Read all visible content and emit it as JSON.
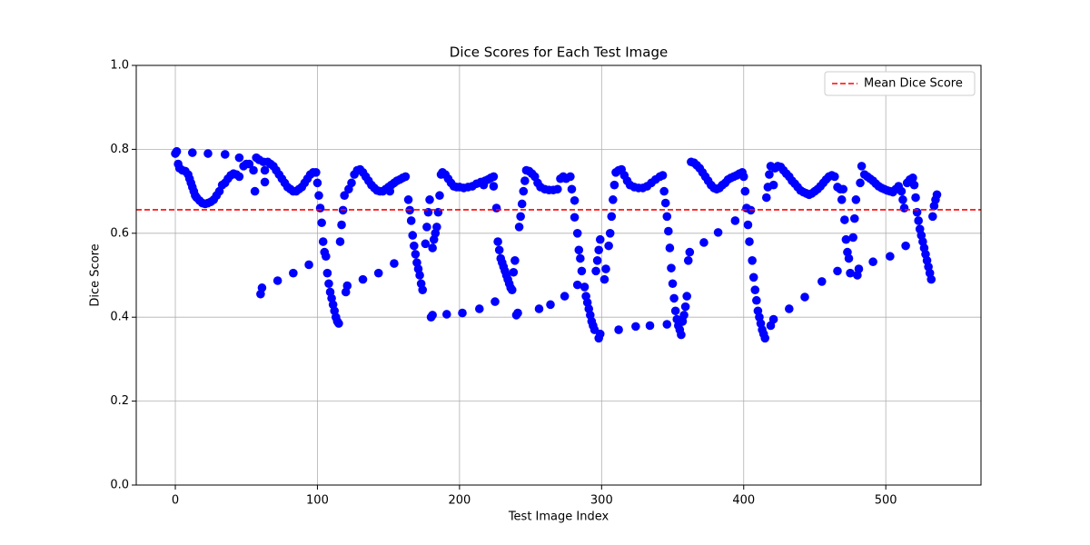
{
  "chart_data": {
    "type": "scatter",
    "title": "Dice Scores for Each Test Image",
    "x_label": "Test Image Index",
    "y_label": "Dice Score",
    "xlim": [
      -27.5,
      567
    ],
    "ylim": [
      0,
      1
    ],
    "xticks": [
      0,
      100,
      200,
      300,
      400,
      500
    ],
    "yticks": [
      {
        "value": 0,
        "label": "0.0"
      },
      0.2,
      0.4,
      0.6,
      0.8,
      {
        "value": 1,
        "label": "1.0"
      }
    ],
    "grid": true,
    "color": "#0000ff",
    "x": [
      0,
      1,
      2,
      3,
      5,
      7,
      9,
      10,
      11,
      12,
      13,
      14,
      15,
      17,
      19,
      21,
      23,
      25,
      27,
      29,
      31,
      33,
      35,
      37,
      39,
      41,
      43,
      45,
      12,
      23,
      35,
      45,
      48,
      50,
      52,
      55,
      57,
      59,
      62,
      65,
      67,
      69,
      71,
      73,
      75,
      77,
      79,
      81,
      83,
      85,
      87,
      89,
      91,
      93,
      95,
      97,
      99,
      56,
      63,
      63,
      60,
      61,
      72,
      83,
      94,
      100,
      101,
      102,
      103,
      104,
      105,
      106,
      107,
      108,
      109,
      110,
      111,
      112,
      113,
      114,
      115,
      116,
      117,
      118,
      120,
      121,
      119,
      122,
      124,
      126,
      128,
      130,
      132,
      134,
      136,
      138,
      140,
      142,
      144,
      146,
      148,
      150,
      152,
      154,
      156,
      158,
      160,
      162,
      132,
      143,
      154,
      151,
      164,
      165,
      166,
      167,
      168,
      169,
      170,
      171,
      172,
      173,
      174,
      176,
      177,
      178,
      179,
      181,
      182,
      183,
      184,
      185,
      186,
      180,
      181,
      191,
      187,
      188,
      190,
      192,
      194,
      196,
      198,
      200,
      203,
      206,
      209,
      212,
      215,
      218,
      220,
      222,
      224,
      224,
      217,
      202,
      214,
      225,
      226,
      227,
      228,
      229,
      230,
      231,
      232,
      233,
      234,
      235,
      236,
      237,
      238,
      239,
      240,
      241,
      242,
      243,
      244,
      245,
      246,
      247,
      249,
      251,
      253,
      255,
      257,
      260,
      263,
      266,
      269,
      271,
      273,
      275,
      278,
      279,
      281,
      281,
      283,
      284,
      285,
      286,
      283,
      288,
      289,
      290,
      291,
      292,
      293,
      294,
      295,
      298,
      299,
      296,
      297,
      298,
      299,
      302,
      303,
      305,
      306,
      307,
      308,
      309,
      310,
      312,
      314,
      316,
      318,
      320,
      323,
      326,
      329,
      332,
      335,
      338,
      341,
      343,
      256,
      264,
      274,
      312,
      324,
      334,
      346,
      344,
      345,
      346,
      347,
      348,
      349,
      350,
      351,
      352,
      353,
      354,
      355,
      356,
      357,
      358,
      359,
      360,
      361,
      362,
      363,
      365,
      367,
      369,
      371,
      373,
      375,
      377,
      379,
      381,
      383,
      385,
      387,
      389,
      391,
      393,
      395,
      397,
      399,
      400,
      401,
      402,
      403,
      404,
      405,
      406,
      407,
      408,
      409,
      410,
      411,
      412,
      413,
      414,
      415,
      372,
      382,
      394,
      419,
      421,
      432,
      443,
      455,
      466,
      416,
      417,
      418,
      419,
      421,
      422,
      424,
      426,
      428,
      430,
      432,
      434,
      436,
      438,
      440,
      442,
      444,
      446,
      448,
      450,
      452,
      454,
      456,
      458,
      460,
      462,
      464,
      466,
      468,
      470,
      469,
      471,
      472,
      473,
      474,
      475,
      477,
      478,
      479,
      480,
      481,
      482,
      483,
      485,
      487,
      489,
      491,
      493,
      495,
      497,
      499,
      501,
      503,
      505,
      507,
      509,
      511,
      512,
      513,
      515,
      517,
      519,
      520,
      521,
      522,
      523,
      524,
      525,
      526,
      527,
      528,
      529,
      530,
      531,
      532,
      533,
      534,
      535,
      536,
      491,
      503,
      514
    ],
    "values": [
      0.79,
      0.795,
      0.765,
      0.755,
      0.75,
      0.748,
      0.74,
      0.73,
      0.72,
      0.71,
      0.7,
      0.69,
      0.685,
      0.678,
      0.672,
      0.67,
      0.672,
      0.675,
      0.68,
      0.69,
      0.7,
      0.715,
      0.72,
      0.73,
      0.738,
      0.742,
      0.74,
      0.735,
      0.792,
      0.79,
      0.788,
      0.78,
      0.76,
      0.765,
      0.765,
      0.75,
      0.78,
      0.775,
      0.77,
      0.77,
      0.765,
      0.76,
      0.75,
      0.74,
      0.73,
      0.72,
      0.71,
      0.705,
      0.7,
      0.7,
      0.705,
      0.71,
      0.72,
      0.73,
      0.74,
      0.745,
      0.745,
      0.7,
      0.722,
      0.75,
      0.455,
      0.47,
      0.487,
      0.505,
      0.525,
      0.72,
      0.69,
      0.66,
      0.625,
      0.58,
      0.555,
      0.545,
      0.505,
      0.48,
      0.46,
      0.445,
      0.43,
      0.415,
      0.4,
      0.39,
      0.385,
      0.58,
      0.62,
      0.655,
      0.46,
      0.475,
      0.69,
      0.705,
      0.72,
      0.74,
      0.75,
      0.752,
      0.745,
      0.735,
      0.725,
      0.715,
      0.708,
      0.702,
      0.7,
      0.7,
      0.705,
      0.71,
      0.715,
      0.72,
      0.725,
      0.728,
      0.732,
      0.735,
      0.49,
      0.505,
      0.528,
      0.7,
      0.68,
      0.655,
      0.63,
      0.595,
      0.57,
      0.55,
      0.53,
      0.515,
      0.5,
      0.48,
      0.465,
      0.575,
      0.615,
      0.65,
      0.68,
      0.565,
      0.585,
      0.6,
      0.615,
      0.65,
      0.69,
      0.4,
      0.405,
      0.407,
      0.74,
      0.745,
      0.74,
      0.73,
      0.72,
      0.712,
      0.71,
      0.71,
      0.708,
      0.71,
      0.712,
      0.718,
      0.722,
      0.725,
      0.728,
      0.732,
      0.735,
      0.712,
      0.715,
      0.41,
      0.42,
      0.437,
      0.66,
      0.58,
      0.56,
      0.54,
      0.53,
      0.52,
      0.51,
      0.5,
      0.49,
      0.48,
      0.47,
      0.465,
      0.507,
      0.535,
      0.405,
      0.41,
      0.615,
      0.64,
      0.67,
      0.7,
      0.725,
      0.75,
      0.748,
      0.742,
      0.735,
      0.72,
      0.71,
      0.705,
      0.703,
      0.703,
      0.705,
      0.73,
      0.735,
      0.73,
      0.735,
      0.705,
      0.678,
      0.638,
      0.6,
      0.56,
      0.54,
      0.51,
      0.477,
      0.472,
      0.45,
      0.435,
      0.42,
      0.405,
      0.39,
      0.38,
      0.37,
      0.35,
      0.36,
      0.51,
      0.535,
      0.56,
      0.585,
      0.49,
      0.515,
      0.57,
      0.6,
      0.64,
      0.68,
      0.715,
      0.745,
      0.75,
      0.752,
      0.738,
      0.725,
      0.715,
      0.71,
      0.708,
      0.708,
      0.712,
      0.72,
      0.728,
      0.735,
      0.738,
      0.42,
      0.43,
      0.45,
      0.37,
      0.378,
      0.38,
      0.383,
      0.7,
      0.672,
      0.64,
      0.605,
      0.565,
      0.517,
      0.48,
      0.445,
      0.415,
      0.395,
      0.38,
      0.37,
      0.358,
      0.39,
      0.405,
      0.425,
      0.45,
      0.535,
      0.555,
      0.77,
      0.768,
      0.762,
      0.755,
      0.745,
      0.735,
      0.725,
      0.715,
      0.708,
      0.705,
      0.708,
      0.715,
      0.72,
      0.728,
      0.732,
      0.735,
      0.738,
      0.742,
      0.745,
      0.735,
      0.7,
      0.66,
      0.62,
      0.58,
      0.655,
      0.535,
      0.495,
      0.465,
      0.44,
      0.415,
      0.4,
      0.385,
      0.37,
      0.36,
      0.35,
      0.578,
      0.602,
      0.63,
      0.38,
      0.395,
      0.42,
      0.448,
      0.485,
      0.51,
      0.685,
      0.71,
      0.74,
      0.76,
      0.715,
      0.755,
      0.76,
      0.758,
      0.75,
      0.742,
      0.735,
      0.725,
      0.718,
      0.71,
      0.702,
      0.698,
      0.695,
      0.692,
      0.695,
      0.7,
      0.705,
      0.712,
      0.72,
      0.728,
      0.735,
      0.738,
      0.735,
      0.71,
      0.705,
      0.705,
      0.68,
      0.632,
      0.585,
      0.555,
      0.54,
      0.505,
      0.59,
      0.635,
      0.68,
      0.5,
      0.515,
      0.72,
      0.76,
      0.74,
      0.735,
      0.73,
      0.725,
      0.718,
      0.712,
      0.708,
      0.705,
      0.702,
      0.7,
      0.698,
      0.705,
      0.712,
      0.7,
      0.68,
      0.66,
      0.72,
      0.728,
      0.732,
      0.715,
      0.685,
      0.65,
      0.63,
      0.61,
      0.595,
      0.58,
      0.565,
      0.55,
      0.535,
      0.52,
      0.505,
      0.49,
      0.64,
      0.665,
      0.68,
      0.692,
      0.532,
      0.545,
      0.57
    ],
    "mean_line": {
      "name": "Mean Dice Score",
      "value": 0.656,
      "color": "#ff0000"
    },
    "legend": "upper right"
  }
}
